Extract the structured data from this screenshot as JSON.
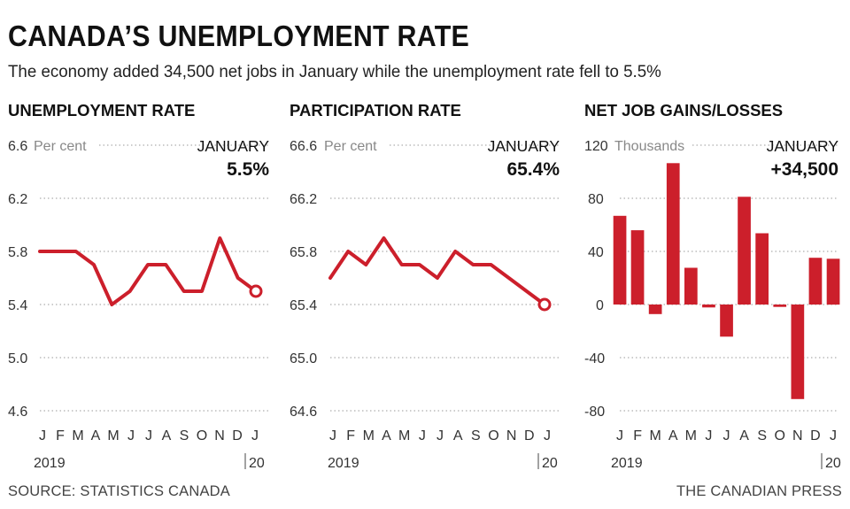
{
  "title": "CANADA’S UNEMPLOYMENT RATE",
  "subtitle": "The economy added 34,500 net jobs in January while the unemployment rate fell to 5.5%",
  "source": "SOURCE: STATISTICS CANADA",
  "credit": "THE CANADIAN PRESS",
  "colors": {
    "series": "#cc1f2b",
    "grid": "#9a9a9a"
  },
  "chart_data": [
    {
      "type": "line",
      "title": "UNEMPLOYMENT RATE",
      "unit": "Per cent",
      "x_tick_labels": [
        "J",
        "F",
        "M",
        "A",
        "M",
        "J",
        "J",
        "A",
        "S",
        "O",
        "N",
        "D",
        "J"
      ],
      "year_start": "2019",
      "year_end": "20",
      "values": [
        5.8,
        5.8,
        5.8,
        5.7,
        5.4,
        5.5,
        5.7,
        5.7,
        5.5,
        5.5,
        5.9,
        5.6,
        5.5
      ],
      "ylim": [
        4.6,
        6.6
      ],
      "yticks": [
        "6.6",
        "6.2",
        "5.8",
        "5.4",
        "5.0",
        "4.6"
      ],
      "grid": true,
      "callout": {
        "label": "JANUARY",
        "value": "5.5%"
      }
    },
    {
      "type": "line",
      "title": "PARTICIPATION RATE",
      "unit": "Per cent",
      "x_tick_labels": [
        "J",
        "F",
        "M",
        "A",
        "M",
        "J",
        "J",
        "A",
        "S",
        "O",
        "N",
        "D",
        "J"
      ],
      "year_start": "2019",
      "year_end": "20",
      "values": [
        65.6,
        65.8,
        65.7,
        65.9,
        65.7,
        65.7,
        65.6,
        65.8,
        65.7,
        65.7,
        65.6,
        65.5,
        65.4
      ],
      "ylim": [
        64.6,
        66.6
      ],
      "yticks": [
        "66.6",
        "66.2",
        "65.8",
        "65.4",
        "65.0",
        "64.6"
      ],
      "grid": true,
      "callout": {
        "label": "JANUARY",
        "value": "65.4%"
      }
    },
    {
      "type": "bar",
      "title": "NET JOB GAINS/LOSSES",
      "unit": "Thousands",
      "x_tick_labels": [
        "J",
        "F",
        "M",
        "A",
        "M",
        "J",
        "J",
        "A",
        "S",
        "O",
        "N",
        "D",
        "J"
      ],
      "year_start": "2019",
      "year_end": "20",
      "values": [
        66.8,
        55.9,
        -7.2,
        106.5,
        27.7,
        -2.2,
        -24.2,
        81.1,
        53.7,
        -1.8,
        -71.2,
        35.2,
        34.5
      ],
      "ylim": [
        -80,
        120
      ],
      "yticks": [
        "120",
        "80",
        "40",
        "0",
        "-40",
        "-80"
      ],
      "grid": true,
      "callout": {
        "label": "JANUARY",
        "value": "+34,500"
      }
    }
  ]
}
